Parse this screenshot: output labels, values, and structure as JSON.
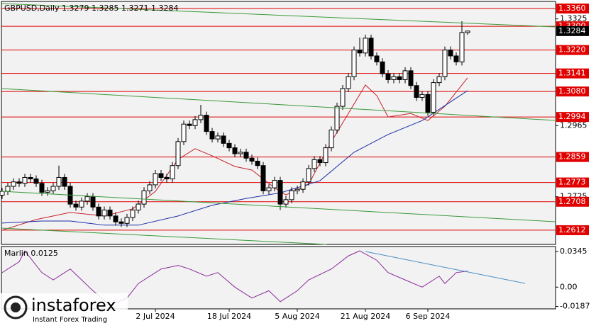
{
  "chart_data": {
    "type": "candlestick",
    "title": "GBPUSD,Daily  1.3279 1.3285 1.3271 1.3284",
    "up_color": "#ffffff",
    "down_color": "#000000",
    "ylim": [
      1.2564,
      1.3384
    ],
    "yticks": [
      1.3325,
      1.2965,
      1.2725
    ],
    "last_price": 1.3284,
    "levels": [
      {
        "value": 1.336,
        "label": "1.3360"
      },
      {
        "value": 1.33,
        "label": "1.3300"
      },
      {
        "value": 1.322,
        "label": "1.3220"
      },
      1.3141,
      {
        "value": 1.308,
        "label": "1.3080"
      },
      1.2994,
      1.2859,
      1.2773,
      1.2708,
      1.2612
    ],
    "level_color": "#e00000",
    "xticks": [
      {
        "value": 27,
        "label": "2 Jul 2024"
      },
      {
        "value": 40,
        "label": "18 Jul 2024"
      },
      {
        "value": 52,
        "label": "5 Aug 2024"
      },
      {
        "value": 64,
        "label": "21 Aug 2024"
      },
      {
        "value": 75,
        "label": "6 Sep 2024"
      }
    ],
    "ohlc": [
      [
        1.273,
        1.2755,
        1.2718,
        1.2743
      ],
      [
        1.2743,
        1.2772,
        1.2731,
        1.276
      ],
      [
        1.276,
        1.2787,
        1.2748,
        1.2775
      ],
      [
        1.2775,
        1.2787,
        1.2758,
        1.277
      ],
      [
        1.277,
        1.2802,
        1.2758,
        1.279
      ],
      [
        1.279,
        1.2802,
        1.2773,
        1.2785
      ],
      [
        1.2785,
        1.2797,
        1.2758,
        1.277
      ],
      [
        1.277,
        1.2782,
        1.2728,
        1.274
      ],
      [
        1.274,
        1.2757,
        1.2728,
        1.2745
      ],
      [
        1.2745,
        1.2772,
        1.2733,
        1.276
      ],
      [
        1.276,
        1.283,
        1.2748,
        1.279
      ],
      [
        1.279,
        1.2802,
        1.2748,
        1.276
      ],
      [
        1.276,
        1.2772,
        1.2688,
        1.27
      ],
      [
        1.27,
        1.2712,
        1.2678,
        1.269
      ],
      [
        1.269,
        1.2722,
        1.2678,
        1.271
      ],
      [
        1.271,
        1.2737,
        1.2698,
        1.2725
      ],
      [
        1.2725,
        1.2737,
        1.2678,
        1.269
      ],
      [
        1.269,
        1.2702,
        1.2648,
        1.266
      ],
      [
        1.266,
        1.2692,
        1.2648,
        1.268
      ],
      [
        1.268,
        1.2692,
        1.2648,
        1.266
      ],
      [
        1.266,
        1.2672,
        1.2628,
        1.264
      ],
      [
        1.264,
        1.2652,
        1.2623,
        1.2635
      ],
      [
        1.2635,
        1.2667,
        1.2623,
        1.2655
      ],
      [
        1.2655,
        1.2692,
        1.2643,
        1.268
      ],
      [
        1.268,
        1.2712,
        1.2668,
        1.27
      ],
      [
        1.27,
        1.2757,
        1.2688,
        1.2745
      ],
      [
        1.2745,
        1.2777,
        1.2733,
        1.2765
      ],
      [
        1.2765,
        1.2815,
        1.2753,
        1.2803
      ],
      [
        1.2803,
        1.2815,
        1.2778,
        1.279
      ],
      [
        1.279,
        1.2802,
        1.2773,
        1.2785
      ],
      [
        1.2785,
        1.2842,
        1.2773,
        1.283
      ],
      [
        1.283,
        1.2923,
        1.2818,
        1.2911
      ],
      [
        1.2911,
        1.2982,
        1.2899,
        1.297
      ],
      [
        1.297,
        1.2982,
        1.2953,
        1.2965
      ],
      [
        1.2965,
        1.2997,
        1.2953,
        1.2985
      ],
      [
        1.2985,
        1.3035,
        1.2973,
        1.3
      ],
      [
        1.3,
        1.3012,
        1.2933,
        1.2945
      ],
      [
        1.2945,
        1.2957,
        1.2908,
        1.292
      ],
      [
        1.292,
        1.2942,
        1.2908,
        1.293
      ],
      [
        1.293,
        1.2942,
        1.2893,
        1.2905
      ],
      [
        1.2905,
        1.2917,
        1.2878,
        1.289
      ],
      [
        1.289,
        1.2902,
        1.2858,
        1.287
      ],
      [
        1.287,
        1.2887,
        1.2858,
        1.2875
      ],
      [
        1.2875,
        1.2887,
        1.2843,
        1.2855
      ],
      [
        1.2855,
        1.2867,
        1.2833,
        1.2845
      ],
      [
        1.2845,
        1.2857,
        1.2818,
        1.283
      ],
      [
        1.283,
        1.2842,
        1.2733,
        1.2745
      ],
      [
        1.2745,
        1.2767,
        1.2733,
        1.2755
      ],
      [
        1.2755,
        1.2792,
        1.2743,
        1.278
      ],
      [
        1.278,
        1.2792,
        1.268,
        1.27
      ],
      [
        1.27,
        1.2727,
        1.2688,
        1.2715
      ],
      [
        1.2715,
        1.2757,
        1.2703,
        1.2745
      ],
      [
        1.2745,
        1.2762,
        1.2733,
        1.275
      ],
      [
        1.275,
        1.2787,
        1.2738,
        1.2775
      ],
      [
        1.2775,
        1.2832,
        1.2763,
        1.282
      ],
      [
        1.282,
        1.2862,
        1.2808,
        1.285
      ],
      [
        1.285,
        1.2862,
        1.2828,
        1.284
      ],
      [
        1.284,
        1.2902,
        1.2828,
        1.289
      ],
      [
        1.289,
        1.2962,
        1.2878,
        1.295
      ],
      [
        1.295,
        1.3042,
        1.2938,
        1.303
      ],
      [
        1.303,
        1.3102,
        1.3018,
        1.309
      ],
      [
        1.309,
        1.3142,
        1.3078,
        1.313
      ],
      [
        1.313,
        1.3232,
        1.3118,
        1.322
      ],
      [
        1.322,
        1.3262,
        1.3198,
        1.321
      ],
      [
        1.321,
        1.3272,
        1.3198,
        1.326
      ],
      [
        1.326,
        1.3272,
        1.3188,
        1.32
      ],
      [
        1.32,
        1.3212,
        1.3168,
        1.318
      ],
      [
        1.318,
        1.3192,
        1.3128,
        1.314
      ],
      [
        1.314,
        1.3152,
        1.3108,
        1.312
      ],
      [
        1.312,
        1.3142,
        1.3108,
        1.313
      ],
      [
        1.313,
        1.3142,
        1.3108,
        1.312
      ],
      [
        1.312,
        1.3162,
        1.3108,
        1.315
      ],
      [
        1.315,
        1.3162,
        1.3088,
        1.31
      ],
      [
        1.31,
        1.3112,
        1.3048,
        1.306
      ],
      [
        1.306,
        1.3082,
        1.3048,
        1.307
      ],
      [
        1.307,
        1.3082,
        1.2998,
        1.301
      ],
      [
        1.301,
        1.3122,
        1.2998,
        1.311
      ],
      [
        1.311,
        1.3142,
        1.3098,
        1.313
      ],
      [
        1.313,
        1.3232,
        1.3118,
        1.322
      ],
      [
        1.322,
        1.3232,
        1.3188,
        1.32
      ],
      [
        1.32,
        1.3212,
        1.3168,
        1.318
      ],
      [
        1.318,
        1.3317,
        1.3168,
        1.3279
      ],
      [
        1.3279,
        1.3285,
        1.3271,
        1.3284
      ]
    ],
    "lines": [
      {
        "color": "#c8202a",
        "x": [
          0,
          6,
          12,
          18,
          23,
          27,
          31,
          34,
          37,
          41,
          44,
          48,
          50,
          54,
          58,
          61,
          64,
          66,
          68,
          72,
          75,
          78,
          82
        ],
        "values": [
          1.2612,
          1.2648,
          1.2672,
          1.266,
          1.2684,
          1.2743,
          1.2851,
          1.2887,
          1.2863,
          1.2827,
          1.2815,
          1.2755,
          1.2731,
          1.2767,
          1.2911,
          1.3006,
          1.3102,
          1.3066,
          1.2994,
          1.3006,
          1.2982,
          1.303,
          1.3126
        ]
      },
      {
        "color": "#1c2fa8",
        "x": [
          0,
          7,
          12,
          18,
          24,
          31,
          37,
          43,
          49,
          56,
          62,
          68,
          74,
          82
        ],
        "values": [
          1.2636,
          1.2643,
          1.2643,
          1.2629,
          1.2629,
          1.266,
          1.2696,
          1.2719,
          1.2738,
          1.2779,
          1.2875,
          1.2935,
          1.2982,
          1.3083
        ]
      }
    ],
    "indicator": {
      "title": "Marlin 0.0125",
      "color": "#8a2a9a",
      "ylim": [
        -0.0211,
        0.0394
      ],
      "yticks": [
        0.0345,
        {
          "value": 0,
          "label": "0.00"
        },
        -0.0187
      ],
      "x": [
        0,
        3,
        4,
        7,
        9,
        12,
        16,
        19,
        22,
        24,
        28,
        31,
        33,
        36,
        38,
        41,
        44,
        47,
        49,
        52,
        54,
        58,
        61,
        63,
        66,
        68,
        71,
        74,
        77,
        78,
        80,
        82
      ],
      "values": [
        0.0141,
        0.0246,
        0.0352,
        0.0141,
        0.007,
        0.0176,
        -0.0035,
        -0.0176,
        -0.0106,
        0.0035,
        0.0176,
        0.0211,
        0.0176,
        0.0106,
        0.0141,
        0,
        -0.0106,
        -0.0035,
        -0.0141,
        -0.0035,
        0.007,
        0.0176,
        0.0303,
        0.0352,
        0.0261,
        0.0141,
        0.007,
        0,
        0.0106,
        0.0035,
        0.0141,
        0.0155
      ]
    },
    "watermark": {
      "brand": "instaforex",
      "tagline": "Instant Forex Trading"
    }
  }
}
